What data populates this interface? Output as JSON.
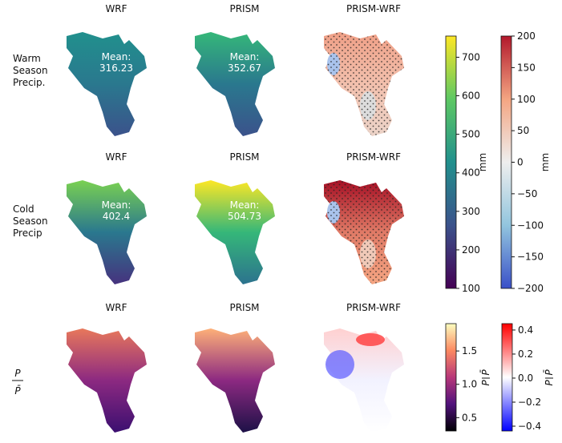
{
  "mean_label": "Mean:",
  "rows": [
    {
      "label": [
        "Warm",
        "Season",
        "Precip."
      ],
      "titles": [
        "WRF",
        "PRISM",
        "PRISM-WRF"
      ],
      "means": [
        316.23,
        352.67
      ]
    },
    {
      "label": [
        "Cold",
        "Season",
        "Precip"
      ],
      "titles": [
        "WRF",
        "PRISM",
        "PRISM-WRF"
      ],
      "means": [
        402.4,
        504.73
      ]
    },
    {
      "label": [
        "P",
        "P̄"
      ],
      "titles": [
        "WRF",
        "PRISM",
        "PRISM-WRF"
      ]
    }
  ],
  "colorbars": [
    {
      "label": "mm",
      "lim": [
        100,
        755
      ],
      "ticks": [
        100,
        200,
        300,
        400,
        500,
        600,
        700
      ],
      "colors": [
        "#440154",
        "#3b528b",
        "#21908d",
        "#5dc863",
        "#fde725"
      ]
    },
    {
      "label": "mm",
      "lim": [
        -200,
        200
      ],
      "ticks": [
        {
          "value": -200,
          "label": "−200"
        },
        {
          "value": -150,
          "label": "−150"
        },
        {
          "value": -100,
          "label": "−100"
        },
        {
          "value": -50,
          "label": "−50"
        },
        0,
        50,
        100,
        150,
        200
      ],
      "colors": [
        "#3a50c8",
        "#92c5de",
        "#eeeeee",
        "#f4a582",
        "#b2182b"
      ]
    },
    {
      "label": [
        "P",
        "P̄"
      ],
      "lim": [
        0.3,
        1.91
      ],
      "ticks": [
        0.5,
        {
          "value": 1.0,
          "label": "1.0"
        },
        1.5
      ],
      "colors": [
        "#000004",
        "#51127c",
        "#b73779",
        "#fc8961",
        "#fcfdbf"
      ]
    },
    {
      "label": [
        "P",
        "P̄"
      ],
      "lim": [
        -0.44,
        0.453
      ],
      "ticks": [
        {
          "value": -0.4,
          "label": "−0.4"
        },
        {
          "value": -0.2,
          "label": "−0.2"
        },
        {
          "value": 0.0,
          "label": "0.0"
        },
        0.2,
        0.4
      ],
      "colors": [
        "#0000ff",
        "#ffffff",
        "#ff0000"
      ]
    }
  ]
}
